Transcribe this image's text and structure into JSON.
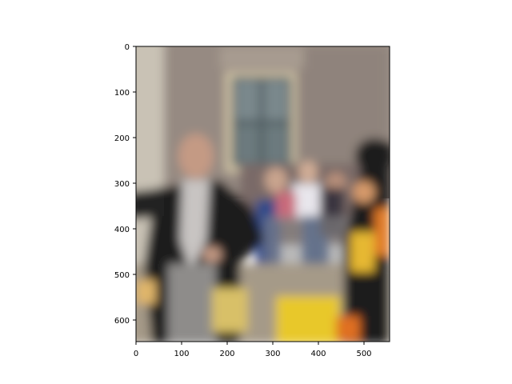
{
  "figure": {
    "image_alt": "Blurred photo: man in black morning coat with grey waistcoat in front of a brick building with a tall window, crowd and yellow/black uniformed figure at right",
    "xaxis": {
      "ticks": [
        "0",
        "100",
        "200",
        "300",
        "400",
        "500"
      ],
      "range": [
        0,
        556
      ]
    },
    "yaxis": {
      "ticks": [
        "0",
        "100",
        "200",
        "300",
        "400",
        "500",
        "600"
      ],
      "range": [
        0,
        647
      ],
      "inverted": true
    }
  }
}
